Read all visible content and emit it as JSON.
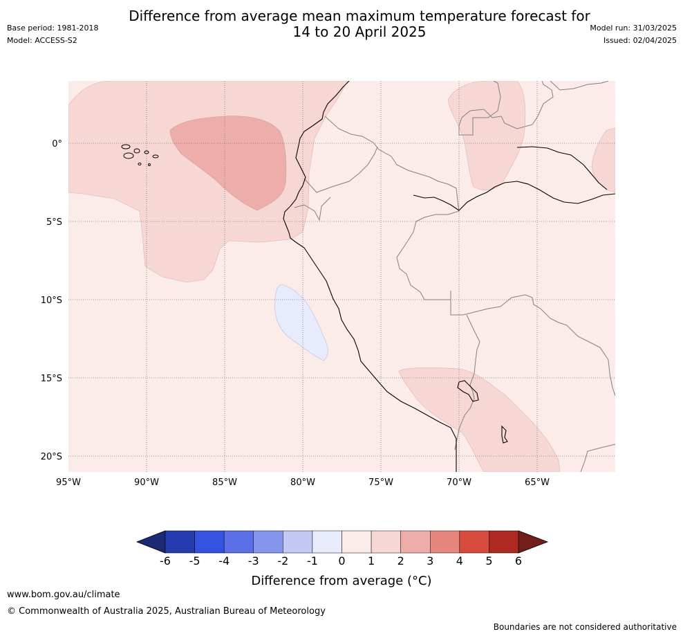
{
  "title_line1": "Difference from average mean maximum temperature forecast for",
  "title_line2": "14 to 20 April 2025",
  "base_period": "Base period: 1981-2018",
  "model": "Model: ACCESS-S2",
  "model_run": "Model run: 31/03/2025",
  "issued": "Issued: 02/04/2025",
  "map": {
    "lat_ticks": [
      "0°",
      "5°S",
      "10°S",
      "15°S",
      "20°S"
    ],
    "lon_ticks": [
      "95°W",
      "90°W",
      "85°W",
      "80°W",
      "75°W",
      "70°W",
      "65°W"
    ],
    "colors": {
      "bg_anom_0_1": "#fbebe9",
      "anom_1_2": "#f6d7d4",
      "anom_2_3": "#edaeaa",
      "anom_m1_0": "#e8ebfb",
      "coast": "#000000",
      "border": "#808080"
    }
  },
  "colorbar": {
    "ticks": [
      "-6",
      "-5",
      "-4",
      "-3",
      "-2",
      "-1",
      "0",
      "1",
      "2",
      "3",
      "4",
      "5",
      "6"
    ],
    "colors": [
      "#253aad",
      "#3451e0",
      "#5b70e8",
      "#8596ec",
      "#c2c9f4",
      "#e8ebfb",
      "#fbebe9",
      "#f6d7d4",
      "#edaeaa",
      "#e6867f",
      "#d94a3e",
      "#ad2921"
    ],
    "under_color": "#1c2a73",
    "over_color": "#721e1a",
    "label": "Difference from average (°C)"
  },
  "footer": {
    "url": "www.bom.gov.au/climate",
    "copyright": "© Commonwealth of Australia 2025, Australian Bureau of Meteorology",
    "disclaimer": "Boundaries are not considered authoritative"
  }
}
